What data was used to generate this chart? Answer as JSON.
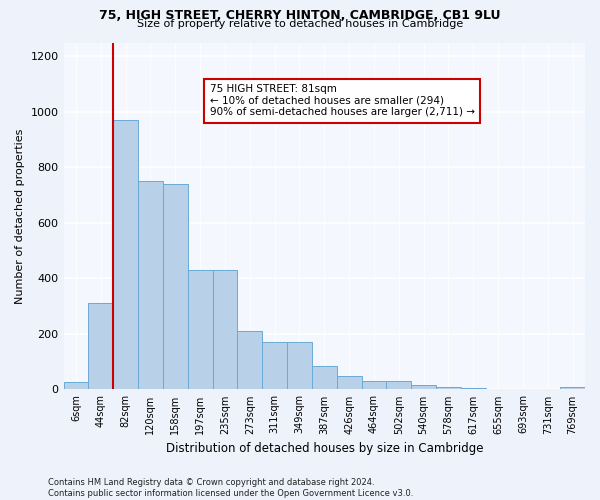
{
  "title_line1": "75, HIGH STREET, CHERRY HINTON, CAMBRIDGE, CB1 9LU",
  "title_line2": "Size of property relative to detached houses in Cambridge",
  "xlabel": "Distribution of detached houses by size in Cambridge",
  "ylabel": "Number of detached properties",
  "bar_color": "#b8d0e8",
  "bar_edge_color": "#6aaad4",
  "annotation_line_color": "#cc0000",
  "annotation_box_color": "#cc0000",
  "annotation_text": "75 HIGH STREET: 81sqm\n← 10% of detached houses are smaller (294)\n90% of semi-detached houses are larger (2,711) →",
  "vline_x_idx": 2,
  "categories": [
    "6sqm",
    "44sqm",
    "82sqm",
    "120sqm",
    "158sqm",
    "197sqm",
    "235sqm",
    "273sqm",
    "311sqm",
    "349sqm",
    "387sqm",
    "426sqm",
    "464sqm",
    "502sqm",
    "540sqm",
    "578sqm",
    "617sqm",
    "655sqm",
    "693sqm",
    "731sqm",
    "769sqm"
  ],
  "values": [
    25,
    310,
    970,
    750,
    740,
    430,
    430,
    210,
    170,
    170,
    85,
    50,
    30,
    30,
    15,
    10,
    5,
    3,
    2,
    0,
    10
  ],
  "ylim": [
    0,
    1250
  ],
  "yticks": [
    0,
    200,
    400,
    600,
    800,
    1000,
    1200
  ],
  "footnote": "Contains HM Land Registry data © Crown copyright and database right 2024.\nContains public sector information licensed under the Open Government Licence v3.0.",
  "bg_color": "#eef2fb",
  "plot_bg_color": "#f5f7fe"
}
